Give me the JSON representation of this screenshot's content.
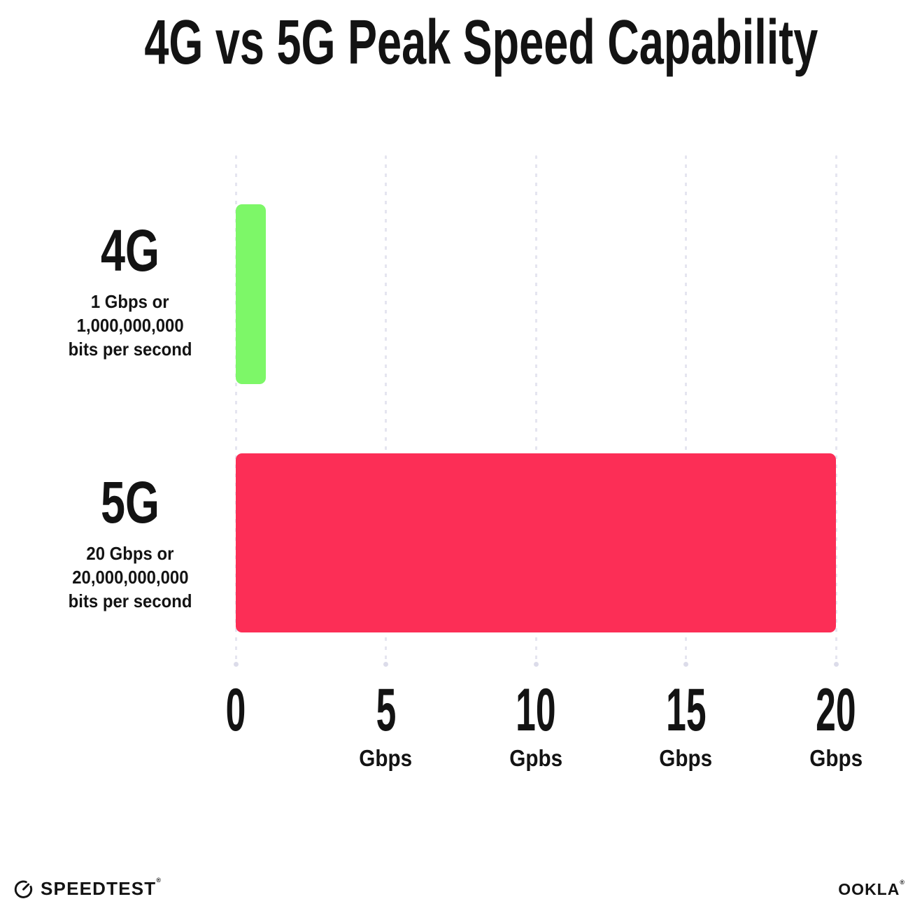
{
  "chart_data": {
    "type": "bar",
    "orientation": "horizontal",
    "title": "4G vs 5G Peak Speed Capability",
    "categories": [
      "4G",
      "5G"
    ],
    "values": [
      1,
      20
    ],
    "value_unit": "Gbps",
    "bar_colors": [
      "#7DF768",
      "#FC2E56"
    ],
    "row_descriptions": [
      [
        "1 Gbps or",
        "1,000,000,000",
        "bits per second"
      ],
      [
        "20 Gbps or",
        "20,000,000,000",
        "bits per second"
      ]
    ],
    "xlim": [
      0,
      20
    ],
    "x_ticks": [
      {
        "value": 0,
        "label": "0",
        "unit": ""
      },
      {
        "value": 5,
        "label": "5",
        "unit": "Gbps"
      },
      {
        "value": 10,
        "label": "10",
        "unit": "Gpbs"
      },
      {
        "value": 15,
        "label": "15",
        "unit": "Gbps"
      },
      {
        "value": 20,
        "label": "20",
        "unit": "Gbps"
      }
    ],
    "grid": "vertical dotted",
    "legend": "none",
    "background": "#FFFFFF"
  },
  "colors": {
    "text": "#131313",
    "gridline": "#E5E5F0",
    "gridline_end_dot": "#DCDCEA"
  },
  "footer": {
    "speedtest_label": "SPEEDTEST",
    "speedtest_trademark": "®",
    "speedtest_icon": "speedometer-gauge",
    "ookla_label": "OOKLA",
    "ookla_trademark": "®"
  }
}
